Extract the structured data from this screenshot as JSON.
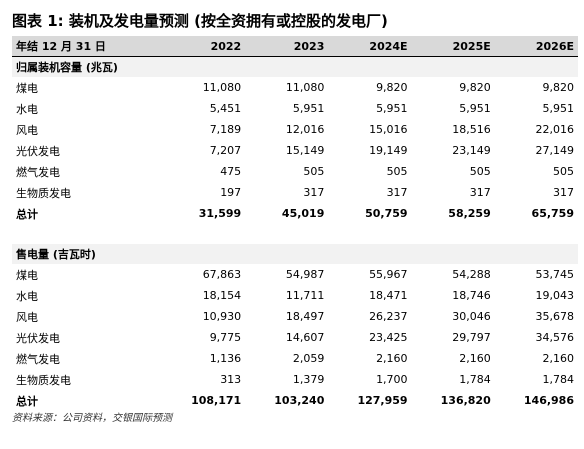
{
  "title": "图表 1: 装机及发电量预测 (按全资拥有或控股的发电厂)",
  "table": {
    "header": [
      "年结 12 月 31 日",
      "2022",
      "2023",
      "2024E",
      "2025E",
      "2026E"
    ],
    "sections": [
      {
        "title": "归属装机容量 (兆瓦)",
        "rows": [
          [
            "煤电",
            "11,080",
            "11,080",
            "9,820",
            "9,820",
            "9,820"
          ],
          [
            "水电",
            "5,451",
            "5,951",
            "5,951",
            "5,951",
            "5,951"
          ],
          [
            "风电",
            "7,189",
            "12,016",
            "15,016",
            "18,516",
            "22,016"
          ],
          [
            "光伏发电",
            "7,207",
            "15,149",
            "19,149",
            "23,149",
            "27,149"
          ],
          [
            "燃气发电",
            "475",
            "505",
            "505",
            "505",
            "505"
          ],
          [
            "生物质发电",
            "197",
            "317",
            "317",
            "317",
            "317"
          ],
          [
            "总计",
            "31,599",
            "45,019",
            "50,759",
            "58,259",
            "65,759"
          ]
        ]
      },
      {
        "title": "售电量 (吉瓦时)",
        "rows": [
          [
            "煤电",
            "67,863",
            "54,987",
            "55,967",
            "54,288",
            "53,745"
          ],
          [
            "水电",
            "18,154",
            "11,711",
            "18,471",
            "18,746",
            "19,043"
          ],
          [
            "风电",
            "10,930",
            "18,497",
            "26,237",
            "30,046",
            "35,678"
          ],
          [
            "光伏发电",
            "9,775",
            "14,607",
            "23,425",
            "29,797",
            "34,576"
          ],
          [
            "燃气发电",
            "1,136",
            "2,059",
            "2,160",
            "2,160",
            "2,160"
          ],
          [
            "生物质发电",
            "313",
            "1,379",
            "1,700",
            "1,784",
            "1,784"
          ],
          [
            "总计",
            "108,171",
            "103,240",
            "127,959",
            "136,820",
            "146,986"
          ]
        ]
      }
    ]
  },
  "source": "资料来源：公司资料，交银国际预测"
}
